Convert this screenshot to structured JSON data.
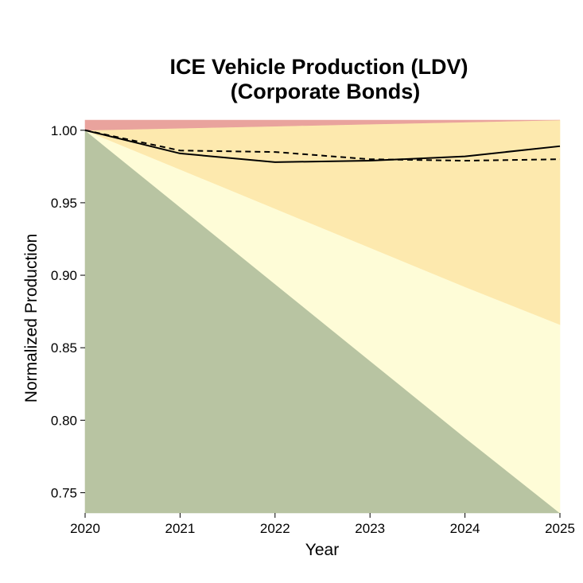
{
  "chart_data": {
    "type": "area",
    "title": "ICE Vehicle Production (LDV)",
    "subtitle": "(Corporate Bonds)",
    "xlabel": "Year",
    "ylabel": "Normalized Production",
    "xlim": [
      2020,
      2025
    ],
    "ylim": [
      0.736,
      1.007
    ],
    "x_ticks": [
      "2020",
      "2021",
      "2022",
      "2023",
      "2024",
      "2025"
    ],
    "y_ticks": [
      "0.75",
      "0.80",
      "0.85",
      "0.90",
      "0.95",
      "1.00"
    ],
    "grid": false,
    "legend": "none",
    "x": [
      2020,
      2021,
      2022,
      2023,
      2024,
      2025
    ],
    "bands": [
      {
        "color": "#b8c4a2",
        "lower": [
          0.736,
          0.736,
          0.736,
          0.736,
          0.736,
          0.736
        ],
        "upper": [
          1.0,
          0.947,
          0.894,
          0.841,
          0.788,
          0.736
        ]
      },
      {
        "color": "#fefcd7",
        "lower": [
          1.0,
          0.947,
          0.894,
          0.841,
          0.788,
          0.736
        ],
        "upper": [
          1.0,
          0.973,
          0.946,
          0.919,
          0.892,
          0.866
        ]
      },
      {
        "color": "#fde9ae",
        "lower": [
          1.0,
          0.973,
          0.946,
          0.919,
          0.892,
          0.866
        ],
        "upper": [
          1.0,
          1.0014,
          1.0028,
          1.0042,
          1.0056,
          1.007
        ]
      },
      {
        "color": "#e9a39d",
        "lower": [
          1.0,
          1.0014,
          1.0028,
          1.0042,
          1.0056,
          1.007
        ],
        "upper": [
          1.007,
          1.007,
          1.007,
          1.007,
          1.007,
          1.007
        ]
      }
    ],
    "series": [
      {
        "style": "solid",
        "color": "#000000",
        "values": [
          1.0,
          0.984,
          0.978,
          0.979,
          0.982,
          0.989
        ]
      },
      {
        "style": "dashed",
        "color": "#000000",
        "values": [
          1.0,
          0.986,
          0.985,
          0.98,
          0.979,
          0.98
        ]
      }
    ]
  }
}
